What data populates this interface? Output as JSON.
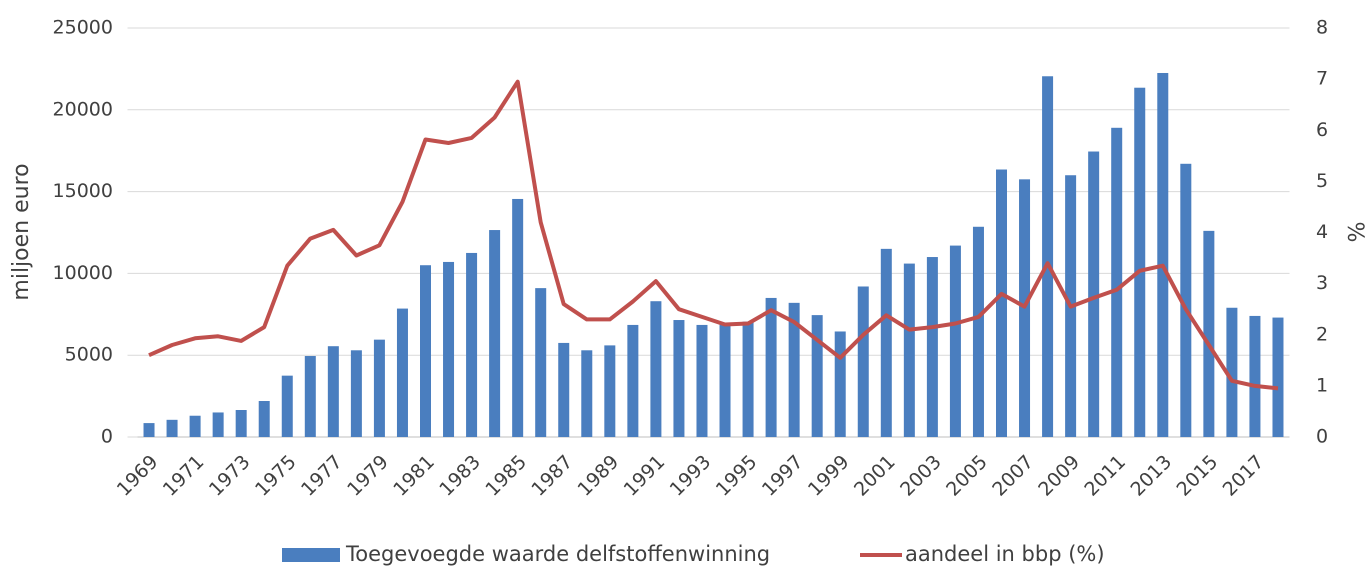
{
  "chart_data": {
    "type": "bar_line",
    "y_label": "miljoen euro",
    "y2_label": "%",
    "categories": [
      "1969",
      null,
      "1971",
      null,
      "1973",
      null,
      "1975",
      null,
      "1977",
      null,
      "1979",
      null,
      "1981",
      null,
      "1983",
      null,
      "1985",
      null,
      "1987",
      null,
      "1989",
      null,
      "1991",
      null,
      "1993",
      null,
      "1995",
      null,
      "1997",
      null,
      "1999",
      null,
      "2001",
      null,
      "2003",
      null,
      "2005",
      null,
      "2007",
      null,
      "2009",
      null,
      "2011",
      null,
      "2013",
      null,
      "2015",
      null,
      "2017",
      null
    ],
    "series": [
      {
        "name": "Toegevoegde waarde delfstoffenwinning",
        "type": "bar",
        "color": "#4a7ebf",
        "values": [
          850,
          1050,
          1300,
          1500,
          1650,
          2200,
          3750,
          4950,
          5550,
          5300,
          5950,
          7850,
          10500,
          10700,
          11250,
          12650,
          14550,
          9100,
          5750,
          5300,
          5600,
          6850,
          8300,
          7150,
          6850,
          6900,
          7050,
          8500,
          8200,
          7450,
          6450,
          9200,
          11500,
          10600,
          11000,
          11700,
          12850,
          16350,
          15750,
          22050,
          16000,
          17450,
          18900,
          21350,
          22250,
          16700,
          12600,
          7900,
          7400,
          7300
        ]
      },
      {
        "name": "aandeel in bbp (%)",
        "type": "line",
        "axis": "y2",
        "color": "#c0504d",
        "values": [
          1.6,
          1.8,
          1.93,
          1.97,
          1.88,
          2.15,
          3.35,
          3.88,
          4.05,
          3.55,
          3.75,
          4.6,
          5.82,
          5.75,
          5.85,
          6.25,
          6.95,
          4.2,
          2.6,
          2.3,
          2.3,
          2.65,
          3.05,
          2.5,
          2.35,
          2.2,
          2.22,
          2.48,
          2.25,
          1.9,
          1.55,
          2.0,
          2.38,
          2.1,
          2.15,
          2.22,
          2.35,
          2.8,
          2.55,
          3.4,
          2.55,
          2.72,
          2.88,
          3.25,
          3.35,
          2.5,
          1.8,
          1.1,
          1.0,
          0.95
        ]
      }
    ],
    "ylim": [
      0,
      25000
    ],
    "yticks": [
      0,
      5000,
      10000,
      15000,
      20000,
      25000
    ],
    "y2lim": [
      0,
      8
    ],
    "y2ticks": [
      0,
      1,
      2,
      3,
      4,
      5,
      6,
      7,
      8
    ],
    "grid": true,
    "legend": "bottom"
  }
}
